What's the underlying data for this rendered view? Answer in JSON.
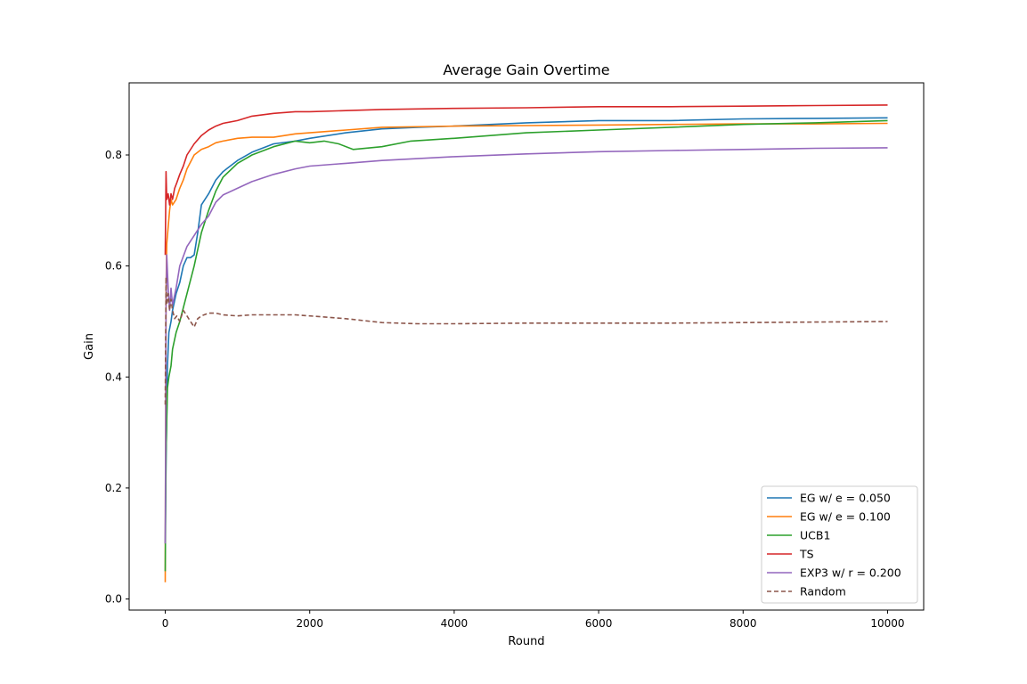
{
  "chart_data": {
    "type": "line",
    "title": "Average Gain Overtime",
    "xlabel": "Round",
    "ylabel": "Gain",
    "xlim": [
      -500,
      10500
    ],
    "ylim": [
      -0.02,
      0.93
    ],
    "xticks": [
      0,
      2000,
      4000,
      6000,
      8000,
      10000
    ],
    "xtick_labels": [
      "0",
      "2000",
      "4000",
      "6000",
      "8000",
      "10000"
    ],
    "yticks": [
      0.0,
      0.2,
      0.4,
      0.6,
      0.8
    ],
    "ytick_labels": [
      "0.0",
      "0.2",
      "0.4",
      "0.6",
      "0.8"
    ],
    "grid": false,
    "legend_position": "lower-right",
    "series": [
      {
        "name": "EG w/ e = 0.050",
        "color": "#1f77b4",
        "dash": "solid",
        "x": [
          0,
          10,
          20,
          30,
          50,
          80,
          100,
          150,
          200,
          250,
          300,
          350,
          400,
          450,
          500,
          600,
          700,
          800,
          1000,
          1200,
          1500,
          1800,
          2000,
          2500,
          3000,
          3500,
          4000,
          5000,
          6000,
          7000,
          8000,
          9000,
          10000
        ],
        "y": [
          0.1,
          0.25,
          0.33,
          0.42,
          0.48,
          0.5,
          0.52,
          0.55,
          0.57,
          0.6,
          0.615,
          0.615,
          0.62,
          0.66,
          0.71,
          0.73,
          0.755,
          0.77,
          0.79,
          0.805,
          0.82,
          0.825,
          0.83,
          0.84,
          0.847,
          0.85,
          0.852,
          0.858,
          0.862,
          0.862,
          0.865,
          0.866,
          0.867
        ]
      },
      {
        "name": "EG w/ e = 0.100",
        "color": "#ff7f0e",
        "dash": "solid",
        "x": [
          0,
          5,
          10,
          20,
          40,
          60,
          80,
          100,
          150,
          200,
          250,
          300,
          400,
          500,
          600,
          700,
          800,
          1000,
          1200,
          1500,
          1800,
          2000,
          2500,
          3000,
          4000,
          5000,
          6000,
          7000,
          8000,
          9000,
          10000
        ],
        "y": [
          0.03,
          0.38,
          0.55,
          0.64,
          0.67,
          0.7,
          0.72,
          0.71,
          0.72,
          0.74,
          0.755,
          0.775,
          0.8,
          0.81,
          0.815,
          0.822,
          0.825,
          0.83,
          0.832,
          0.832,
          0.838,
          0.84,
          0.845,
          0.85,
          0.852,
          0.853,
          0.854,
          0.855,
          0.856,
          0.856,
          0.857
        ]
      },
      {
        "name": "UCB1",
        "color": "#2ca02c",
        "dash": "solid",
        "x": [
          0,
          10,
          20,
          30,
          50,
          80,
          100,
          150,
          200,
          300,
          400,
          500,
          600,
          700,
          800,
          1000,
          1200,
          1500,
          1800,
          2000,
          2200,
          2400,
          2600,
          3000,
          3400,
          4000,
          5000,
          6000,
          7000,
          8000,
          9000,
          10000
        ],
        "y": [
          0.05,
          0.26,
          0.32,
          0.38,
          0.4,
          0.42,
          0.45,
          0.48,
          0.5,
          0.55,
          0.6,
          0.66,
          0.7,
          0.735,
          0.76,
          0.785,
          0.8,
          0.815,
          0.825,
          0.822,
          0.825,
          0.82,
          0.81,
          0.815,
          0.825,
          0.83,
          0.84,
          0.845,
          0.85,
          0.855,
          0.858,
          0.862
        ]
      },
      {
        "name": "TS",
        "color": "#d62728",
        "dash": "solid",
        "x": [
          0,
          5,
          10,
          20,
          40,
          60,
          80,
          100,
          130,
          160,
          200,
          250,
          300,
          400,
          500,
          600,
          700,
          800,
          1000,
          1200,
          1500,
          1800,
          2000,
          2500,
          3000,
          4000,
          5000,
          6000,
          7000,
          8000,
          9000,
          10000
        ],
        "y": [
          0.62,
          0.7,
          0.77,
          0.72,
          0.73,
          0.71,
          0.73,
          0.72,
          0.74,
          0.75,
          0.765,
          0.78,
          0.8,
          0.82,
          0.835,
          0.845,
          0.852,
          0.857,
          0.862,
          0.87,
          0.875,
          0.878,
          0.878,
          0.88,
          0.882,
          0.884,
          0.885,
          0.887,
          0.887,
          0.888,
          0.889,
          0.89
        ]
      },
      {
        "name": "EXP3 w/ r = 0.200",
        "color": "#9467bd",
        "dash": "solid",
        "x": [
          0,
          5,
          10,
          20,
          40,
          60,
          80,
          100,
          150,
          200,
          300,
          400,
          500,
          600,
          700,
          800,
          1000,
          1200,
          1500,
          1800,
          2000,
          2500,
          3000,
          4000,
          5000,
          6000,
          7000,
          8000,
          9000,
          10000
        ],
        "y": [
          0.1,
          0.3,
          0.52,
          0.62,
          0.56,
          0.52,
          0.56,
          0.53,
          0.56,
          0.6,
          0.635,
          0.655,
          0.675,
          0.69,
          0.715,
          0.728,
          0.74,
          0.752,
          0.765,
          0.775,
          0.78,
          0.785,
          0.79,
          0.797,
          0.802,
          0.806,
          0.808,
          0.81,
          0.812,
          0.813
        ]
      },
      {
        "name": "Random",
        "color": "#8c564b",
        "dash": "dashed",
        "x": [
          0,
          5,
          10,
          20,
          40,
          60,
          80,
          100,
          130,
          160,
          200,
          250,
          300,
          350,
          400,
          450,
          500,
          600,
          700,
          800,
          1000,
          1200,
          1500,
          1800,
          2000,
          2500,
          3000,
          3500,
          4000,
          5000,
          6000,
          7000,
          8000,
          9000,
          10000
        ],
        "y": [
          0.35,
          0.48,
          0.58,
          0.53,
          0.55,
          0.52,
          0.54,
          0.52,
          0.505,
          0.51,
          0.5,
          0.52,
          0.51,
          0.5,
          0.49,
          0.505,
          0.51,
          0.515,
          0.515,
          0.512,
          0.51,
          0.512,
          0.512,
          0.512,
          0.51,
          0.505,
          0.498,
          0.496,
          0.496,
          0.497,
          0.497,
          0.497,
          0.498,
          0.499,
          0.5
        ]
      }
    ]
  }
}
